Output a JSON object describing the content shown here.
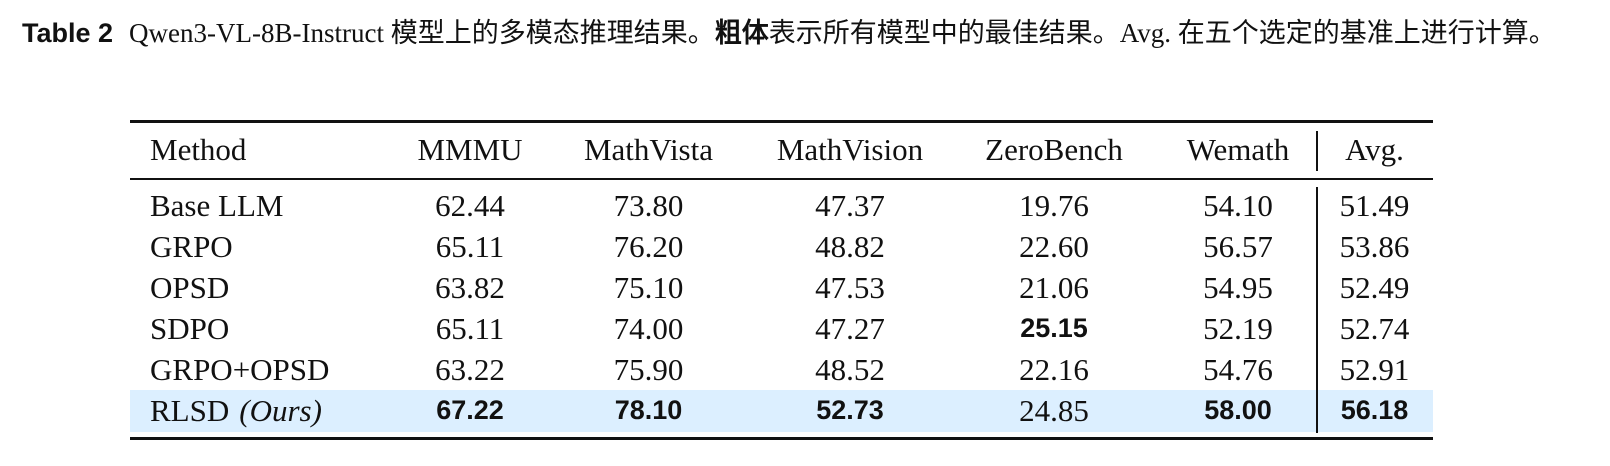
{
  "caption": {
    "label": "Table 2",
    "text_before": "Qwen3-VL-8B-Instruct 模型上的多模态推理结果。",
    "bold_text": "粗体",
    "text_after": "表示所有模型中的最佳结果。Avg. 在五个选定的基准上进行计算。"
  },
  "table": {
    "header": [
      "Method",
      "MMMU",
      "MathVista",
      "MathVision",
      "ZeroBench",
      "Wemath",
      "Avg."
    ],
    "rows": [
      {
        "method": "Base LLM",
        "values": [
          "62.44",
          "73.80",
          "47.37",
          "19.76",
          "54.10",
          "51.49"
        ],
        "bold": [
          false,
          false,
          false,
          false,
          false,
          false
        ],
        "highlight": false
      },
      {
        "method": "GRPO",
        "values": [
          "65.11",
          "76.20",
          "48.82",
          "22.60",
          "56.57",
          "53.86"
        ],
        "bold": [
          false,
          false,
          false,
          false,
          false,
          false
        ],
        "highlight": false
      },
      {
        "method": "OPSD",
        "values": [
          "63.82",
          "75.10",
          "47.53",
          "21.06",
          "54.95",
          "52.49"
        ],
        "bold": [
          false,
          false,
          false,
          false,
          false,
          false
        ],
        "highlight": false
      },
      {
        "method": "SDPO",
        "values": [
          "65.11",
          "74.00",
          "47.27",
          "25.15",
          "52.19",
          "52.74"
        ],
        "bold": [
          false,
          false,
          false,
          true,
          false,
          false
        ],
        "highlight": false
      },
      {
        "method": "GRPO+OPSD",
        "values": [
          "63.22",
          "75.90",
          "48.52",
          "22.16",
          "54.76",
          "52.91"
        ],
        "bold": [
          false,
          false,
          false,
          false,
          false,
          false
        ],
        "highlight": false
      },
      {
        "method": "RLSD",
        "method_note": "(Ours)",
        "values": [
          "67.22",
          "78.10",
          "52.73",
          "24.85",
          "58.00",
          "56.18"
        ],
        "bold": [
          true,
          true,
          true,
          false,
          true,
          true
        ],
        "highlight": true
      }
    ]
  }
}
